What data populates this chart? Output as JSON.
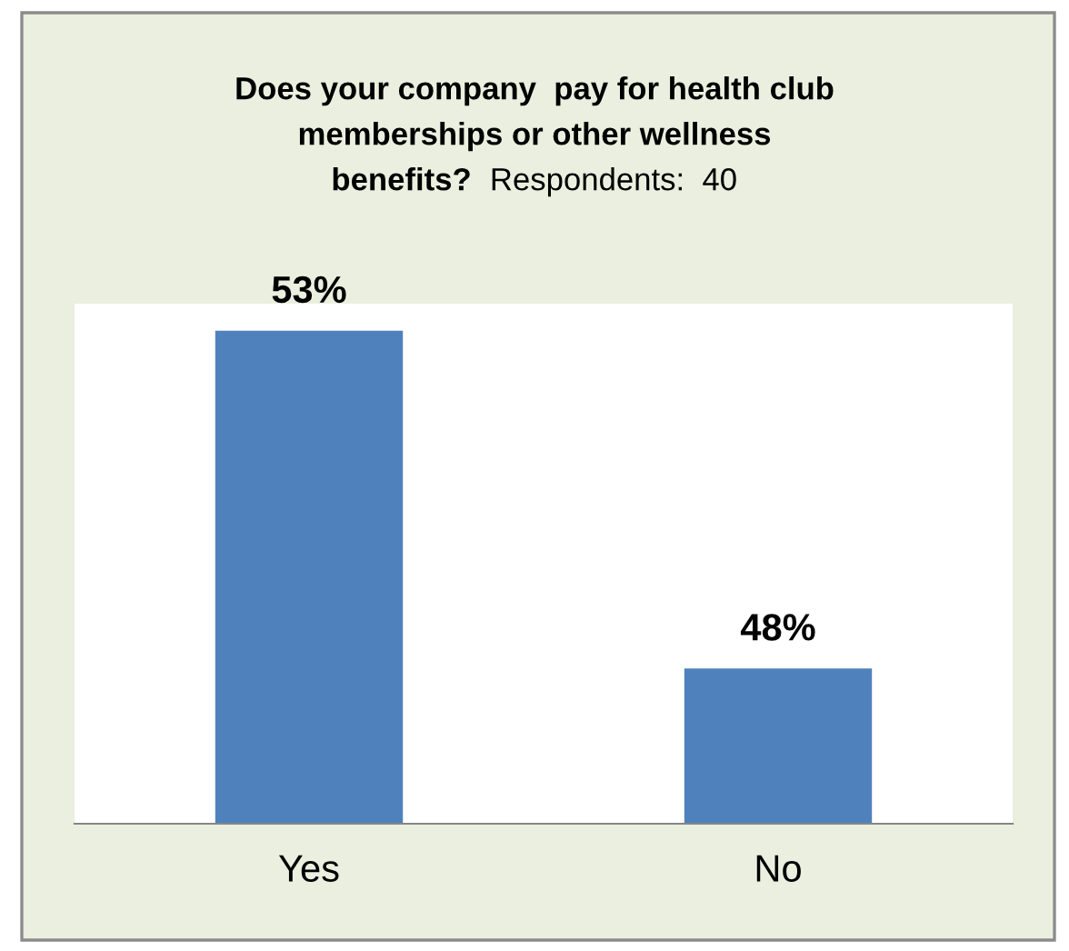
{
  "chart_data": {
    "type": "bar",
    "title": "Does your company  pay for health club memberships or other wellness benefits?",
    "subtitle": "Respondents:  40",
    "categories": [
      "Yes",
      "No"
    ],
    "values": [
      53,
      48
    ],
    "color": "#4f81bd",
    "value_labels": [
      "53%",
      "48%"
    ],
    "ylim": [
      45.7,
      53.4
    ],
    "grid": false,
    "legend": false,
    "tick_labels": "x"
  }
}
